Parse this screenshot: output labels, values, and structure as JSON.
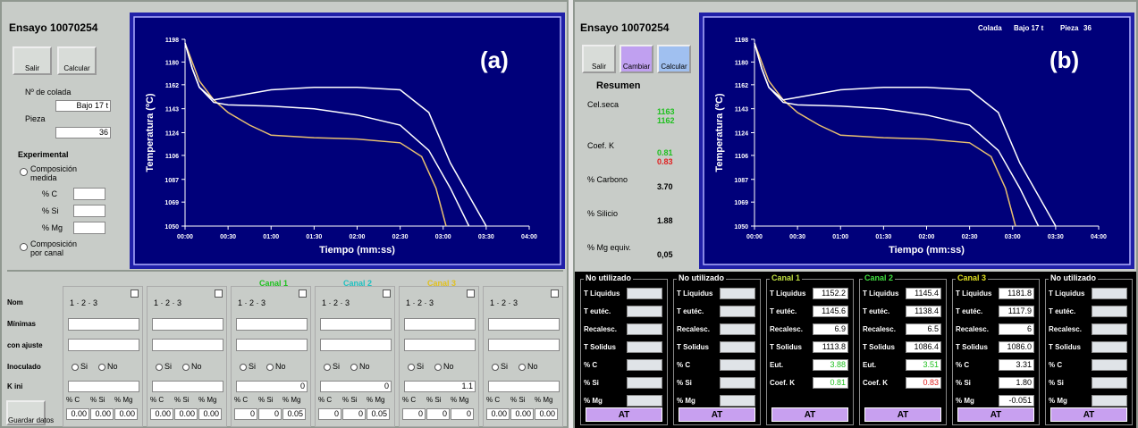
{
  "panel_a": {
    "title": "Ensayo 10070254",
    "buttons": [
      "Salir",
      "Calcular"
    ],
    "colada_label": "Nº de colada",
    "colada": "Bajo 17 t",
    "pieza_label": "Pieza",
    "pieza": "36",
    "section": "Experimental",
    "option_1": "Composición medida",
    "fields": [
      "% C",
      "% Si",
      "% Mg"
    ],
    "option_2": "Composición por canal",
    "row_labels": [
      "Nom",
      "Mínimas",
      "con ajuste",
      "Inoculado",
      "K ini"
    ],
    "selector": "1 · 2 · 3",
    "radio": [
      "Si",
      "No"
    ],
    "save": "Guardar datos",
    "columns": [
      {
        "c": "0.00",
        "si": "0.00",
        "mg": "0.00"
      },
      {
        "c": "0.00",
        "si": "0.00",
        "mg": "0.00"
      },
      {
        "header": "Canal 1",
        "header_color": "#20c020",
        "k": "0",
        "c": "0",
        "si": "0",
        "mg": "0.05"
      },
      {
        "header": "Canal 2",
        "header_color": "#20c0c0",
        "k": "0",
        "c": "0",
        "si": "0",
        "mg": "0.05"
      },
      {
        "header": "Canal 3",
        "header_color": "#e0c020",
        "k": "1.1",
        "c": "0",
        "si": "0",
        "mg": "0"
      },
      {
        "c": "0.00",
        "si": "0.00",
        "mg": "0.00"
      }
    ]
  },
  "panel_b": {
    "title": "Ensayo 10070254",
    "buttons": [
      "Salir",
      "Cambiar",
      "Calcular"
    ],
    "summary_title": "Resumen",
    "summary": [
      {
        "label": "Cel.seca",
        "values": [
          "1163",
          "1162"
        ],
        "colors": [
          "#20c020",
          "#20c020"
        ]
      },
      {
        "label": "Coef. K",
        "values": [
          "0.81",
          "0.83"
        ],
        "colors": [
          "#20c020",
          "#e02020"
        ]
      },
      {
        "label": "% Carbono",
        "values": [
          "3.70"
        ],
        "colors": [
          "#000000"
        ]
      },
      {
        "label": "% Silicio",
        "values": [
          "1.88"
        ],
        "colors": [
          "#000000"
        ]
      },
      {
        "label": "% Mg equiv.",
        "values": [
          "0,05"
        ],
        "colors": [
          "#000000"
        ]
      }
    ],
    "channels": [
      {
        "name": "No utilizado",
        "color": "#ffffff",
        "labels": [
          "T Liquidus",
          "T eutéc.",
          "Recalesc.",
          "T Solidus",
          "% C",
          "% Si",
          "% Mg"
        ],
        "button": "AT"
      },
      {
        "name": "No utilizado",
        "color": "#ffffff",
        "labels": [
          "T Liquidus",
          "T eutéc.",
          "Recalesc.",
          "T Solidus",
          "% C",
          "% Si",
          "% Mg"
        ],
        "button": "AT"
      },
      {
        "name": "Canal 1",
        "color": "#c0e040",
        "labels": [
          "T Liquidus",
          "T eutéc.",
          "Recalesc.",
          "T Solidus",
          "Eut.",
          "Coef. K"
        ],
        "values": [
          "1152.2",
          "1145.6",
          "6.9",
          "1113.8",
          "3.88",
          "0.81"
        ],
        "value_colors": [
          "#000000",
          "#000000",
          "#000000",
          "#000000",
          "#20c020",
          "#20c020"
        ],
        "button": "AT"
      },
      {
        "name": "Canal 2",
        "color": "#40e040",
        "labels": [
          "T Liquidus",
          "T eutéc.",
          "Recalesc.",
          "T Solidus",
          "Eut.",
          "Coef. K"
        ],
        "values": [
          "1145.4",
          "1138.4",
          "6.5",
          "1086.4",
          "3.51",
          "0.83"
        ],
        "value_colors": [
          "#000000",
          "#000000",
          "#000000",
          "#000000",
          "#20c020",
          "#e02020"
        ],
        "button": "AT"
      },
      {
        "name": "Canal 3",
        "color": "#e0e020",
        "labels": [
          "T Liquidus",
          "T eutéc.",
          "Recalesc.",
          "T Solidus",
          "% C",
          "% Si",
          "% Mg"
        ],
        "values": [
          "1181.8",
          "1117.9",
          "6",
          "1086.0",
          "3.31",
          "1.80",
          "-0.051"
        ],
        "value_colors": [
          "#000000",
          "#000000",
          "#000000",
          "#000000",
          "#000000",
          "#000000",
          "#000000"
        ],
        "button": "AT"
      },
      {
        "name": "No utilizado",
        "color": "#ffffff",
        "labels": [
          "T Liquidus",
          "T eutéc.",
          "Recalesc.",
          "T Solidus",
          "% C",
          "% Si",
          "% Mg"
        ],
        "button": "AT"
      }
    ]
  },
  "chart_data": [
    {
      "type": "line",
      "label": "(a)",
      "x_label": "Tiempo (mm:ss)",
      "y_label": "Temperatura (ºC)",
      "xlim": [
        0,
        240
      ],
      "ylim": [
        1050,
        1198
      ],
      "xticks": [
        {
          "value": 0,
          "label": "00:00"
        },
        {
          "value": 30,
          "label": "00:30"
        },
        {
          "value": 60,
          "label": "01:00"
        },
        {
          "value": 90,
          "label": "01:30"
        },
        {
          "value": 120,
          "label": "02:00"
        },
        {
          "value": 150,
          "label": "02:30"
        },
        {
          "value": 180,
          "label": "03:00"
        },
        {
          "value": 210,
          "label": "03:30"
        },
        {
          "value": 240,
          "label": "04:00"
        }
      ],
      "yticks": [
        1050,
        1069,
        1087,
        1106,
        1124,
        1143,
        1162,
        1180,
        1198
      ],
      "series": [
        {
          "color": "#e8c070",
          "x": [
            0,
            5,
            10,
            20,
            30,
            45,
            60,
            90,
            120,
            150,
            165,
            175,
            182
          ],
          "values": [
            1195,
            1180,
            1165,
            1150,
            1140,
            1130,
            1122,
            1120,
            1119,
            1116,
            1105,
            1080,
            1050
          ]
        },
        {
          "color": "#ffffff",
          "x": [
            0,
            5,
            10,
            20,
            30,
            60,
            90,
            120,
            150,
            170,
            185,
            198
          ],
          "values": [
            1195,
            1175,
            1160,
            1148,
            1146,
            1145,
            1143,
            1138,
            1130,
            1110,
            1080,
            1050
          ]
        },
        {
          "color": "#ffffff",
          "x": [
            0,
            5,
            10,
            20,
            30,
            60,
            90,
            120,
            150,
            170,
            185,
            210
          ],
          "values": [
            1195,
            1175,
            1160,
            1150,
            1152,
            1158,
            1160,
            1160,
            1158,
            1140,
            1100,
            1050
          ]
        }
      ]
    },
    {
      "type": "line",
      "label": "(b)",
      "x_label": "Tiempo (mm:ss)",
      "y_label": "Temperatura (ºC)",
      "header": [
        "Colada",
        "Bajo 17 t",
        "Pieza",
        "36"
      ],
      "xlim": [
        0,
        240
      ],
      "ylim": [
        1050,
        1198
      ],
      "xticks": [
        {
          "value": 0,
          "label": "00:00"
        },
        {
          "value": 30,
          "label": "00:30"
        },
        {
          "value": 60,
          "label": "01:00"
        },
        {
          "value": 90,
          "label": "01:30"
        },
        {
          "value": 120,
          "label": "02:00"
        },
        {
          "value": 150,
          "label": "02:30"
        },
        {
          "value": 180,
          "label": "03:00"
        },
        {
          "value": 210,
          "label": "03:30"
        },
        {
          "value": 240,
          "label": "04:00"
        }
      ],
      "yticks": [
        1050,
        1069,
        1087,
        1106,
        1124,
        1143,
        1162,
        1180,
        1198
      ],
      "series": [
        {
          "color": "#e8c070",
          "x": [
            0,
            5,
            10,
            20,
            30,
            45,
            60,
            90,
            120,
            150,
            165,
            175,
            182
          ],
          "values": [
            1195,
            1180,
            1165,
            1150,
            1140,
            1130,
            1122,
            1120,
            1119,
            1116,
            1105,
            1080,
            1050
          ]
        },
        {
          "color": "#ffffff",
          "x": [
            0,
            5,
            10,
            20,
            30,
            60,
            90,
            120,
            150,
            170,
            185,
            198
          ],
          "values": [
            1195,
            1175,
            1160,
            1148,
            1146,
            1145,
            1143,
            1138,
            1130,
            1110,
            1080,
            1050
          ]
        },
        {
          "color": "#ffffff",
          "x": [
            0,
            5,
            10,
            20,
            30,
            60,
            90,
            120,
            150,
            170,
            185,
            210
          ],
          "values": [
            1195,
            1175,
            1160,
            1150,
            1152,
            1158,
            1160,
            1160,
            1158,
            1140,
            1100,
            1050
          ]
        }
      ]
    }
  ]
}
